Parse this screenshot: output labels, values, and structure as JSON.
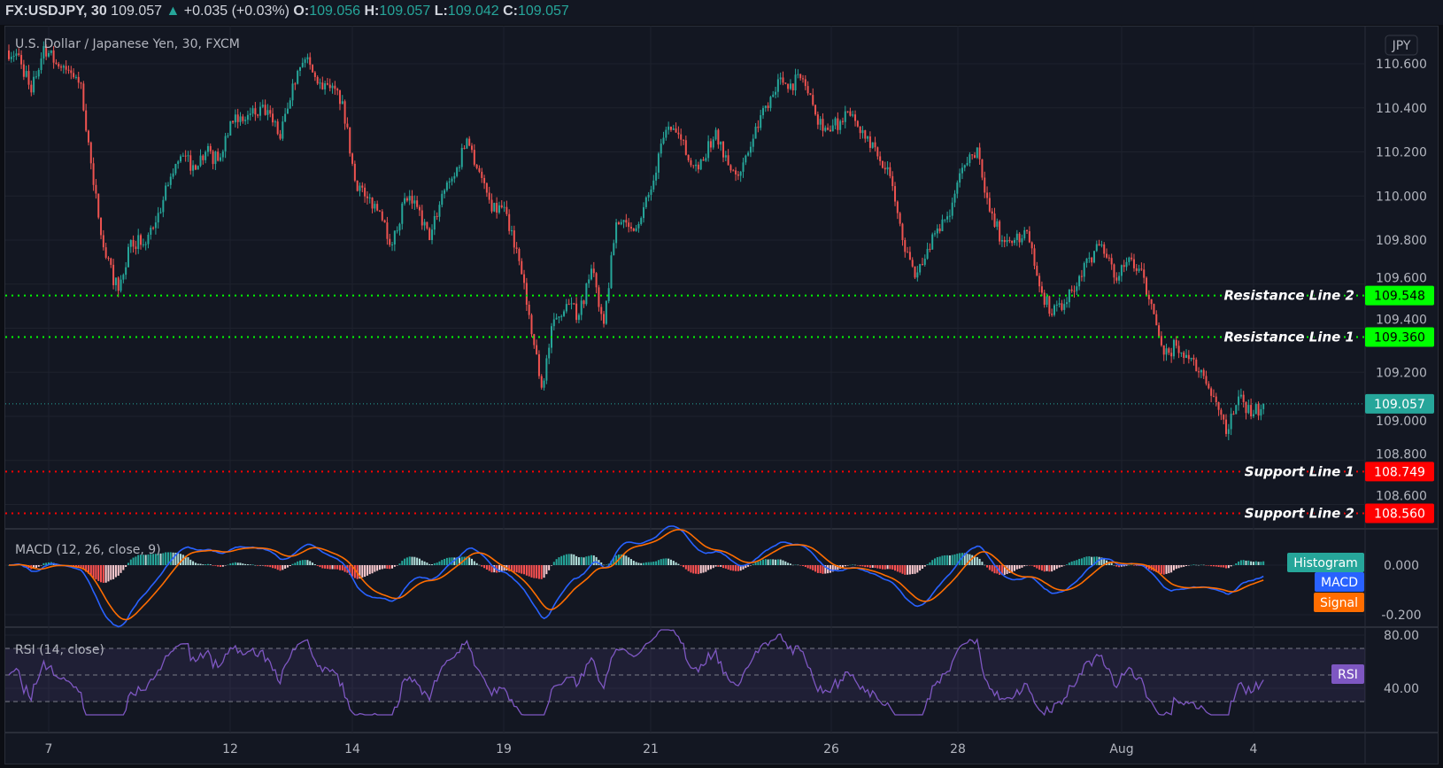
{
  "header": {
    "symbol": "FX:USDJPY, 30",
    "last": "109.057",
    "change": "+0.035 (+0.03%)",
    "o_label": "O:",
    "o": "109.056",
    "h_label": "H:",
    "h": "109.057",
    "l_label": "L:",
    "l": "109.042",
    "c_label": "C:",
    "c": "109.057",
    "up_icon": "triangle-up-icon"
  },
  "legend": {
    "title": "U.S. Dollar / Japanese Yen, 30, FXCM",
    "currency": "JPY"
  },
  "colors": {
    "up": "#26a69a",
    "down": "#ef5350",
    "resistance": "#00ff00",
    "support": "#ff0000",
    "macd": "#2962ff",
    "signal": "#ff6d00",
    "histogram": "#26a69a",
    "rsi": "#7e57c2",
    "background": "#131722"
  },
  "chart_data": [
    {
      "type": "candlestick",
      "title": "U.S. Dollar / Japanese Yen, 30, FXCM",
      "ylim": [
        108.5,
        110.75
      ],
      "y_ticks": [
        "110.600",
        "110.400",
        "110.200",
        "110.000",
        "109.800",
        "109.600",
        "109.400",
        "109.200",
        "109.000",
        "108.800",
        "108.600"
      ],
      "x_ticks": [
        "7",
        "12",
        "14",
        "19",
        "21",
        "26",
        "28",
        "Aug",
        "4"
      ],
      "grid": true,
      "current_price": "109.057",
      "approx_closes": [
        110.66,
        110.64,
        110.47,
        110.68,
        110.6,
        110.57,
        110.51,
        110.05,
        109.72,
        109.57,
        109.8,
        109.78,
        109.88,
        110.05,
        110.18,
        110.14,
        110.2,
        110.16,
        110.34,
        110.34,
        110.37,
        110.39,
        110.26,
        110.51,
        110.62,
        110.51,
        110.49,
        110.43,
        110.07,
        109.99,
        109.93,
        109.78,
        109.99,
        109.95,
        109.8,
        110.01,
        110.09,
        110.26,
        110.11,
        109.93,
        109.95,
        109.76,
        109.46,
        109.13,
        109.44,
        109.51,
        109.46,
        109.67,
        109.42,
        109.88,
        109.86,
        109.9,
        110.07,
        110.3,
        110.28,
        110.14,
        110.16,
        110.3,
        110.14,
        110.11,
        110.26,
        110.41,
        110.53,
        110.51,
        110.53,
        110.37,
        110.3,
        110.34,
        110.37,
        110.26,
        110.18,
        110.09,
        109.8,
        109.63,
        109.76,
        109.84,
        109.97,
        110.14,
        110.22,
        109.93,
        109.8,
        109.8,
        109.84,
        109.59,
        109.46,
        109.51,
        109.59,
        109.72,
        109.78,
        109.63,
        109.7,
        109.67,
        109.51,
        109.28,
        109.32,
        109.26,
        109.21,
        109.09,
        108.92,
        109.09,
        109.0,
        109.057
      ],
      "horizontal_lines": [
        {
          "label": "Resistance Line 2",
          "value": "109.548",
          "color": "#00ff00"
        },
        {
          "label": "Resistance Line 1",
          "value": "109.360",
          "color": "#00ff00"
        },
        {
          "label": "Support Line 1",
          "value": "108.749",
          "color": "#ff0000"
        },
        {
          "label": "Support Line 2",
          "value": "108.560",
          "color": "#ff0000"
        }
      ]
    },
    {
      "type": "line",
      "title": "MACD (12, 26, close, 9)",
      "ylim": [
        -0.23,
        0.07
      ],
      "y_ticks": [
        "0.000",
        "-0.200"
      ],
      "series": [
        {
          "name": "Histogram"
        },
        {
          "name": "MACD"
        },
        {
          "name": "Signal"
        }
      ]
    },
    {
      "type": "line",
      "title": "RSI (14, close)",
      "ylim": [
        20,
        84
      ],
      "y_ticks": [
        "80.00",
        "40.00"
      ],
      "bands": [
        30,
        50,
        70
      ],
      "series": [
        {
          "name": "RSI"
        }
      ]
    }
  ]
}
